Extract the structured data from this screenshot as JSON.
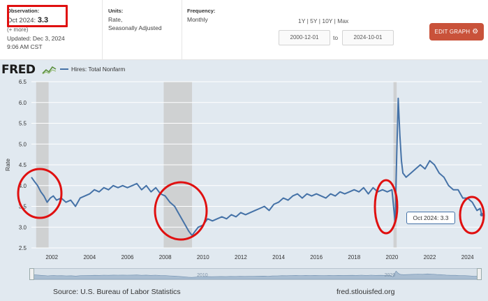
{
  "header": {
    "observation": {
      "label": "Observation:",
      "date": "Oct 2024:",
      "value": "3.3",
      "more": "(+ more)",
      "updated": "Updated: Dec 3, 2024",
      "time": "9:06 AM CST"
    },
    "units": {
      "label": "Units:",
      "line1": "Rate,",
      "line2": "Seasonally Adjusted"
    },
    "frequency": {
      "label": "Frequency:",
      "value": "Monthly"
    },
    "range_links": "1Y | 5Y | 10Y | Max",
    "date_from": "2000-12-01",
    "date_to": "2024-10-01",
    "to_label": "to",
    "edit_button": "EDIT GRAPH",
    "accent_color": "#c9523a",
    "highlight_color": "#e01010"
  },
  "logo": "FRED",
  "legend": {
    "series_name": "Hires: Total Nonfarm",
    "color": "#4572a7"
  },
  "tooltip": {
    "date": "Oct 2024:",
    "value": "3.3"
  },
  "footer": {
    "source": "Source: U.S. Bureau of Labor Statistics",
    "site": "fred.stlouisfed.org"
  },
  "navigator_labels": [
    "2010",
    "2020"
  ],
  "chart_data": {
    "type": "line",
    "ylabel": "Rate",
    "ylim": [
      2.5,
      6.5
    ],
    "yticks": [
      2.5,
      3.0,
      3.5,
      4.0,
      4.5,
      5.0,
      5.5,
      6.0,
      6.5
    ],
    "xlim": [
      2000.92,
      2024.75
    ],
    "xticks": [
      2002,
      2004,
      2006,
      2008,
      2010,
      2012,
      2014,
      2016,
      2018,
      2020,
      2022,
      2024
    ],
    "recessions": [
      [
        2001.17,
        2001.83
      ],
      [
        2007.92,
        2009.42
      ],
      [
        2020.08,
        2020.25
      ]
    ],
    "series": [
      {
        "name": "Hires: Total Nonfarm",
        "x": [
          2000.92,
          2001.08,
          2001.25,
          2001.42,
          2001.58,
          2001.75,
          2001.92,
          2002.08,
          2002.25,
          2002.5,
          2002.75,
          2003.0,
          2003.25,
          2003.5,
          2003.75,
          2004.0,
          2004.25,
          2004.5,
          2004.75,
          2005.0,
          2005.25,
          2005.5,
          2005.75,
          2006.0,
          2006.25,
          2006.5,
          2006.75,
          2007.0,
          2007.25,
          2007.5,
          2007.75,
          2008.0,
          2008.25,
          2008.5,
          2008.75,
          2009.0,
          2009.25,
          2009.42,
          2009.58,
          2009.75,
          2010.0,
          2010.25,
          2010.5,
          2010.75,
          2011.0,
          2011.25,
          2011.5,
          2011.75,
          2012.0,
          2012.25,
          2012.5,
          2012.75,
          2013.0,
          2013.25,
          2013.5,
          2013.75,
          2014.0,
          2014.25,
          2014.5,
          2014.75,
          2015.0,
          2015.25,
          2015.5,
          2015.75,
          2016.0,
          2016.25,
          2016.5,
          2016.75,
          2017.0,
          2017.25,
          2017.5,
          2017.75,
          2018.0,
          2018.25,
          2018.5,
          2018.75,
          2019.0,
          2019.25,
          2019.5,
          2019.75,
          2020.0,
          2020.17,
          2020.25,
          2020.33,
          2020.42,
          2020.5,
          2020.58,
          2020.75,
          2021.0,
          2021.25,
          2021.5,
          2021.75,
          2022.0,
          2022.25,
          2022.5,
          2022.75,
          2023.0,
          2023.25,
          2023.5,
          2023.75,
          2024.0,
          2024.25,
          2024.5,
          2024.67,
          2024.75
        ],
        "values": [
          4.2,
          4.1,
          4.0,
          3.85,
          3.75,
          3.6,
          3.7,
          3.75,
          3.65,
          3.7,
          3.6,
          3.65,
          3.5,
          3.7,
          3.75,
          3.8,
          3.9,
          3.85,
          3.95,
          3.9,
          4.0,
          3.95,
          4.0,
          3.95,
          4.0,
          4.05,
          3.9,
          4.0,
          3.85,
          3.95,
          3.8,
          3.75,
          3.6,
          3.5,
          3.3,
          3.1,
          2.9,
          2.8,
          2.9,
          3.0,
          3.05,
          3.2,
          3.15,
          3.2,
          3.25,
          3.2,
          3.3,
          3.25,
          3.35,
          3.3,
          3.35,
          3.4,
          3.45,
          3.5,
          3.4,
          3.55,
          3.6,
          3.7,
          3.65,
          3.75,
          3.8,
          3.7,
          3.8,
          3.75,
          3.8,
          3.75,
          3.7,
          3.8,
          3.75,
          3.85,
          3.8,
          3.85,
          3.9,
          3.85,
          3.95,
          3.8,
          3.95,
          3.85,
          3.9,
          3.85,
          3.9,
          3.1,
          4.7,
          6.1,
          5.2,
          4.6,
          4.3,
          4.2,
          4.3,
          4.4,
          4.5,
          4.4,
          4.6,
          4.5,
          4.3,
          4.2,
          4.0,
          3.9,
          3.9,
          3.7,
          3.7,
          3.6,
          3.4,
          3.45,
          3.3
        ]
      }
    ]
  }
}
